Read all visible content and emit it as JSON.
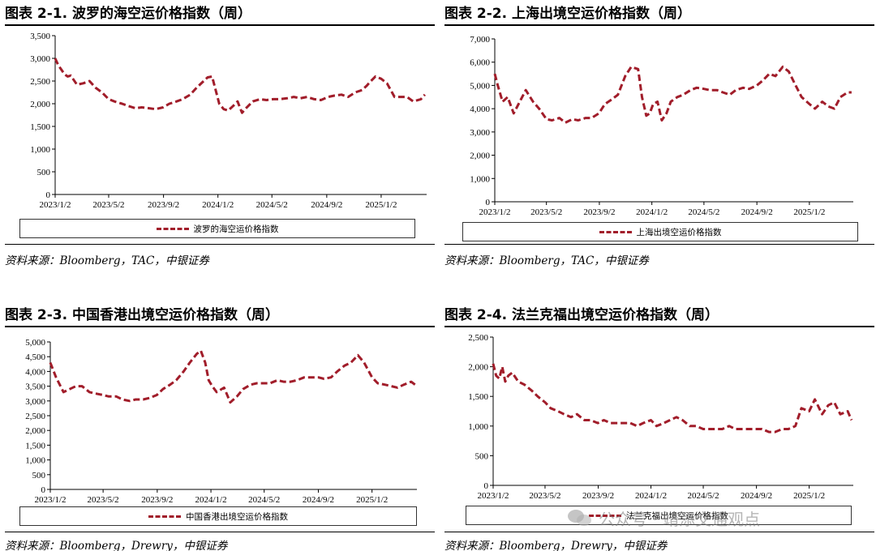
{
  "panels": [
    {
      "title": "图表 2-1. 波罗的海空运价格指数（周）",
      "legend": "波罗的海空运价格指数",
      "source": "资料来源：Bloomberg，TAC，中银证券"
    },
    {
      "title": "图表 2-2. 上海出境空运价格指数（周）",
      "legend": "上海出境空运价格指数",
      "source": "资料来源：Bloomberg，TAC，中银证券"
    },
    {
      "title": "图表 2-3. 中国香港出境空运价格指数（周）",
      "legend": "中国香港出境空运价格指数",
      "source": "资料来源：Bloomberg，Drewry，中银证券"
    },
    {
      "title": "图表 2-4. 法兰克福出境空运价格指数（周）",
      "legend": "法兰克福出境空运价格指数",
      "source": "资料来源：Bloomberg，Drewry，中银证券"
    }
  ],
  "watermark": "公众号 · 靖添交通观点",
  "chart_data": [
    {
      "type": "line",
      "style": "dashed",
      "color": "#a11d2a",
      "ylim": [
        0,
        3500
      ],
      "yticks": [
        0,
        500,
        1000,
        1500,
        2000,
        2500,
        3000,
        3500
      ],
      "ytick_labels": [
        "0",
        "500",
        "1,000",
        "1,500",
        "2,000",
        "2,500",
        "3,000",
        "3,500"
      ],
      "xlim": [
        "2023-01-02",
        "2025-04-14"
      ],
      "xticks": [
        "2023/1/2",
        "2023/5/2",
        "2023/9/2",
        "2024/1/2",
        "2024/5/2",
        "2024/9/2",
        "2025/1/2"
      ],
      "legend_position": "bottom",
      "series": [
        {
          "name": "波罗的海空运价格指数",
          "x": [
            "2023-01-02",
            "2023-01-09",
            "2023-01-16",
            "2023-01-23",
            "2023-01-30",
            "2023-02-06",
            "2023-02-20",
            "2023-03-06",
            "2023-03-20",
            "2023-04-03",
            "2023-04-17",
            "2023-05-02",
            "2023-05-15",
            "2023-06-01",
            "2023-06-15",
            "2023-07-01",
            "2023-07-15",
            "2023-08-01",
            "2023-08-15",
            "2023-09-01",
            "2023-09-15",
            "2023-10-01",
            "2023-10-15",
            "2023-11-01",
            "2023-11-15",
            "2023-12-01",
            "2023-12-10",
            "2023-12-20",
            "2023-12-28",
            "2024-01-05",
            "2024-01-15",
            "2024-01-25",
            "2024-02-05",
            "2024-02-15",
            "2024-02-25",
            "2024-03-05",
            "2024-03-20",
            "2024-04-05",
            "2024-04-20",
            "2024-05-05",
            "2024-05-20",
            "2024-06-05",
            "2024-06-20",
            "2024-07-05",
            "2024-07-20",
            "2024-08-05",
            "2024-08-20",
            "2024-09-05",
            "2024-09-20",
            "2024-10-05",
            "2024-10-20",
            "2024-11-05",
            "2024-11-20",
            "2024-12-01",
            "2024-12-10",
            "2024-12-20",
            "2025-01-02",
            "2025-01-15",
            "2025-02-01",
            "2025-02-15",
            "2025-03-01",
            "2025-03-15",
            "2025-04-01",
            "2025-04-10"
          ],
          "y": [
            3000,
            2850,
            2750,
            2650,
            2600,
            2620,
            2420,
            2450,
            2500,
            2350,
            2250,
            2100,
            2050,
            2000,
            1950,
            1900,
            1920,
            1900,
            1880,
            1920,
            2000,
            2050,
            2100,
            2200,
            2350,
            2500,
            2580,
            2600,
            2300,
            2000,
            1880,
            1850,
            1950,
            2050,
            1800,
            1900,
            2050,
            2100,
            2080,
            2100,
            2100,
            2120,
            2150,
            2120,
            2150,
            2100,
            2080,
            2150,
            2180,
            2200,
            2150,
            2250,
            2300,
            2400,
            2500,
            2600,
            2550,
            2450,
            2150,
            2150,
            2150,
            2050,
            2100,
            2200
          ]
        }
      ]
    },
    {
      "type": "line",
      "style": "dashed",
      "color": "#a11d2a",
      "ylim": [
        0,
        7000
      ],
      "yticks": [
        0,
        1000,
        2000,
        3000,
        4000,
        5000,
        6000,
        7000
      ],
      "ytick_labels": [
        "0",
        "1,000",
        "2,000",
        "3,000",
        "4,000",
        "5,000",
        "6,000",
        "7,000"
      ],
      "xlim": [
        "2023-01-02",
        "2025-04-14"
      ],
      "xticks": [
        "2023/1/2",
        "2023/5/2",
        "2023/9/2",
        "2024/1/2",
        "2024/5/2",
        "2024/9/2",
        "2025/1/2"
      ],
      "legend_position": "bottom",
      "series": [
        {
          "name": "上海出境空运价格指数",
          "x": [
            "2023-01-02",
            "2023-01-09",
            "2023-01-20",
            "2023-02-01",
            "2023-02-15",
            "2023-03-01",
            "2023-03-15",
            "2023-04-01",
            "2023-04-15",
            "2023-05-02",
            "2023-05-15",
            "2023-06-01",
            "2023-06-15",
            "2023-07-01",
            "2023-07-15",
            "2023-08-01",
            "2023-08-15",
            "2023-09-01",
            "2023-09-15",
            "2023-10-01",
            "2023-10-15",
            "2023-11-01",
            "2023-11-15",
            "2023-12-01",
            "2023-12-10",
            "2023-12-20",
            "2023-12-28",
            "2024-01-05",
            "2024-01-15",
            "2024-01-25",
            "2024-02-05",
            "2024-02-15",
            "2024-03-01",
            "2024-03-15",
            "2024-04-01",
            "2024-04-15",
            "2024-05-02",
            "2024-05-15",
            "2024-06-01",
            "2024-06-15",
            "2024-07-01",
            "2024-07-15",
            "2024-08-01",
            "2024-08-15",
            "2024-09-02",
            "2024-09-15",
            "2024-10-01",
            "2024-10-15",
            "2024-11-01",
            "2024-11-15",
            "2024-12-01",
            "2024-12-15",
            "2025-01-02",
            "2025-01-15",
            "2025-02-01",
            "2025-02-15",
            "2025-03-01",
            "2025-03-15",
            "2025-04-01",
            "2025-04-10"
          ],
          "y": [
            5500,
            5000,
            4300,
            4500,
            3800,
            4300,
            4800,
            4300,
            4000,
            3550,
            3500,
            3600,
            3400,
            3550,
            3500,
            3600,
            3600,
            3800,
            4200,
            4400,
            4600,
            5400,
            5800,
            5700,
            4500,
            3700,
            3800,
            4200,
            4300,
            3500,
            3800,
            4300,
            4500,
            4600,
            4800,
            4900,
            4850,
            4800,
            4800,
            4700,
            4600,
            4800,
            4900,
            4850,
            5000,
            5200,
            5500,
            5400,
            5800,
            5600,
            5000,
            4500,
            4200,
            4000,
            4300,
            4100,
            4000,
            4500,
            4700,
            4700
          ]
        }
      ]
    },
    {
      "type": "line",
      "style": "dashed",
      "color": "#a11d2a",
      "ylim": [
        0,
        5000
      ],
      "yticks": [
        0,
        500,
        1000,
        1500,
        2000,
        2500,
        3000,
        3500,
        4000,
        4500,
        5000
      ],
      "ytick_labels": [
        "0",
        "500",
        "1,000",
        "1,500",
        "2,000",
        "2,500",
        "3,000",
        "3,500",
        "4,000",
        "4,500",
        "5,000"
      ],
      "xlim": [
        "2023-01-02",
        "2025-04-14"
      ],
      "xticks": [
        "2023/1/2",
        "2023/5/2",
        "2023/9/2",
        "2024/1/2",
        "2024/5/2",
        "2024/9/2",
        "2025/1/2"
      ],
      "legend_position": "bottom",
      "series": [
        {
          "name": "中国香港出境空运价格指数",
          "x": [
            "2023-01-02",
            "2023-01-15",
            "2023-02-01",
            "2023-02-15",
            "2023-03-01",
            "2023-03-15",
            "2023-04-01",
            "2023-04-15",
            "2023-05-02",
            "2023-05-15",
            "2023-06-01",
            "2023-06-15",
            "2023-07-01",
            "2023-07-15",
            "2023-08-01",
            "2023-08-15",
            "2023-09-01",
            "2023-09-15",
            "2023-10-01",
            "2023-10-15",
            "2023-11-01",
            "2023-11-15",
            "2023-12-01",
            "2023-12-10",
            "2023-12-20",
            "2023-12-28",
            "2024-01-05",
            "2024-01-15",
            "2024-02-01",
            "2024-02-15",
            "2024-03-01",
            "2024-03-15",
            "2024-04-01",
            "2024-04-15",
            "2024-05-02",
            "2024-05-15",
            "2024-06-01",
            "2024-06-15",
            "2024-07-01",
            "2024-07-15",
            "2024-08-01",
            "2024-08-15",
            "2024-09-02",
            "2024-09-15",
            "2024-10-01",
            "2024-10-15",
            "2024-11-01",
            "2024-11-15",
            "2024-12-01",
            "2024-12-15",
            "2025-01-02",
            "2025-01-15",
            "2025-02-01",
            "2025-02-15",
            "2025-03-01",
            "2025-03-15",
            "2025-04-01",
            "2025-04-10"
          ],
          "y": [
            4300,
            3800,
            3300,
            3400,
            3500,
            3500,
            3300,
            3250,
            3200,
            3150,
            3150,
            3050,
            3000,
            3050,
            3050,
            3100,
            3200,
            3400,
            3550,
            3700,
            4000,
            4300,
            4600,
            4700,
            4300,
            3700,
            3500,
            3300,
            3450,
            2950,
            3150,
            3400,
            3550,
            3600,
            3600,
            3600,
            3700,
            3650,
            3650,
            3700,
            3800,
            3800,
            3800,
            3750,
            3800,
            4000,
            4200,
            4300,
            4550,
            4300,
            3800,
            3600,
            3550,
            3500,
            3450,
            3550,
            3650,
            3550
          ]
        }
      ]
    },
    {
      "type": "line",
      "style": "dashed",
      "color": "#a11d2a",
      "ylim": [
        0,
        2500
      ],
      "yticks": [
        0,
        500,
        1000,
        1500,
        2000,
        2500
      ],
      "ytick_labels": [
        "0",
        "500",
        "1,000",
        "1,500",
        "2,000",
        "2,500"
      ],
      "xlim": [
        "2023-01-02",
        "2025-04-14"
      ],
      "xticks": [
        "2023/1/2",
        "2023/5/2",
        "2023/9/2",
        "2024/1/2",
        "2024/5/2",
        "2024/9/2",
        "2025/1/2"
      ],
      "legend_position": "bottom",
      "series": [
        {
          "name": "法兰克福出境空运价格指数",
          "x": [
            "2023-01-02",
            "2023-01-09",
            "2023-01-16",
            "2023-01-23",
            "2023-01-30",
            "2023-02-06",
            "2023-02-15",
            "2023-03-01",
            "2023-03-15",
            "2023-04-01",
            "2023-04-15",
            "2023-05-02",
            "2023-05-15",
            "2023-06-01",
            "2023-06-15",
            "2023-07-01",
            "2023-07-15",
            "2023-08-01",
            "2023-08-15",
            "2023-09-01",
            "2023-09-15",
            "2023-10-01",
            "2023-10-15",
            "2023-11-01",
            "2023-11-15",
            "2023-12-01",
            "2023-12-15",
            "2024-01-02",
            "2024-01-15",
            "2024-02-01",
            "2024-02-15",
            "2024-03-01",
            "2024-03-15",
            "2024-04-01",
            "2024-04-15",
            "2024-05-02",
            "2024-05-15",
            "2024-06-01",
            "2024-06-15",
            "2024-07-01",
            "2024-07-15",
            "2024-08-01",
            "2024-08-15",
            "2024-09-02",
            "2024-09-15",
            "2024-10-01",
            "2024-10-15",
            "2024-11-01",
            "2024-11-15",
            "2024-12-01",
            "2024-12-15",
            "2025-01-02",
            "2025-01-15",
            "2025-02-01",
            "2025-02-15",
            "2025-03-01",
            "2025-03-15",
            "2025-04-01",
            "2025-04-10"
          ],
          "y": [
            2050,
            1850,
            1800,
            2000,
            1750,
            1850,
            1900,
            1750,
            1700,
            1600,
            1500,
            1400,
            1300,
            1250,
            1200,
            1150,
            1200,
            1100,
            1100,
            1050,
            1100,
            1050,
            1050,
            1050,
            1050,
            1000,
            1050,
            1100,
            1000,
            1050,
            1100,
            1150,
            1100,
            1000,
            1000,
            950,
            950,
            950,
            950,
            1000,
            950,
            950,
            950,
            950,
            950,
            900,
            900,
            950,
            950,
            1000,
            1300,
            1250,
            1450,
            1200,
            1350,
            1400,
            1200,
            1250,
            1100
          ]
        }
      ]
    }
  ]
}
